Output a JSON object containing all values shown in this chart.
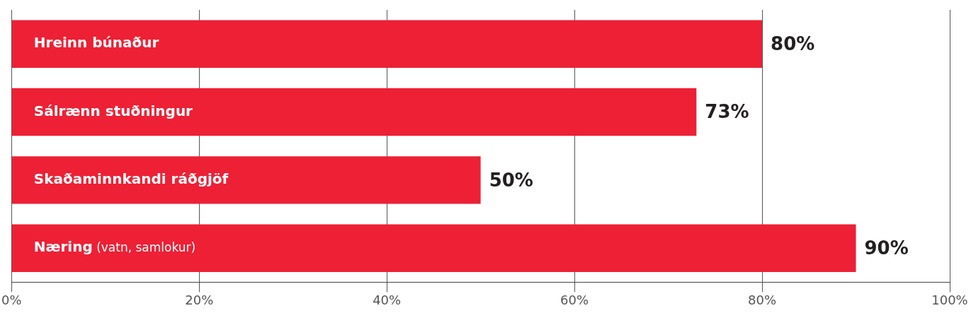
{
  "chart_data": {
    "type": "bar",
    "orientation": "horizontal",
    "categories": [
      "Hreinn búnaður",
      "Sálrænn stuðningur",
      "Skaðaminnkandi ráðgjöf",
      "Næring (vatn, samlokur)"
    ],
    "values": [
      80,
      73,
      50,
      90
    ],
    "color": "#ed2035",
    "value_labels": [
      "80%",
      "73%",
      "50%",
      "90%"
    ],
    "xlim": [
      0,
      100
    ],
    "xticks": [
      {
        "value": 0,
        "label": "0%"
      },
      {
        "value": 20,
        "label": "20%"
      },
      {
        "value": 40,
        "label": "40%"
      },
      {
        "value": 60,
        "label": "60%"
      },
      {
        "value": 80,
        "label": "80%"
      },
      {
        "value": 100,
        "label": "100%"
      }
    ],
    "grid": "x"
  }
}
